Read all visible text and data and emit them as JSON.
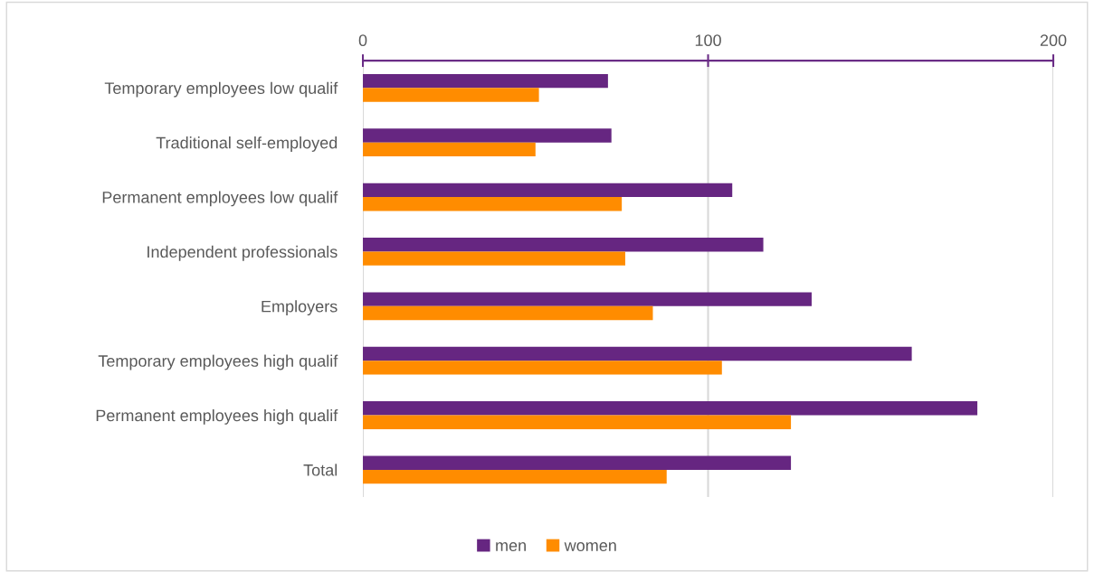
{
  "chart_data": {
    "type": "bar",
    "orientation": "horizontal",
    "categories": [
      "Temporary employees low qualif",
      "Traditional self-employed",
      "Permanent employees low qualif",
      "Independent professionals",
      "Employers",
      "Temporary employees high qualif",
      "Permanent employees high qualif",
      "Total"
    ],
    "series": [
      {
        "name": "men",
        "color": "#662681",
        "values": [
          71,
          72,
          107,
          116,
          130,
          159,
          178,
          124
        ]
      },
      {
        "name": "women",
        "color": "#ff8c00",
        "values": [
          51,
          50,
          75,
          76,
          84,
          104,
          124,
          88
        ]
      }
    ],
    "xlim": [
      0,
      200
    ],
    "xticks": [
      0,
      100,
      200
    ],
    "grid": "x",
    "legend": "bottom"
  }
}
